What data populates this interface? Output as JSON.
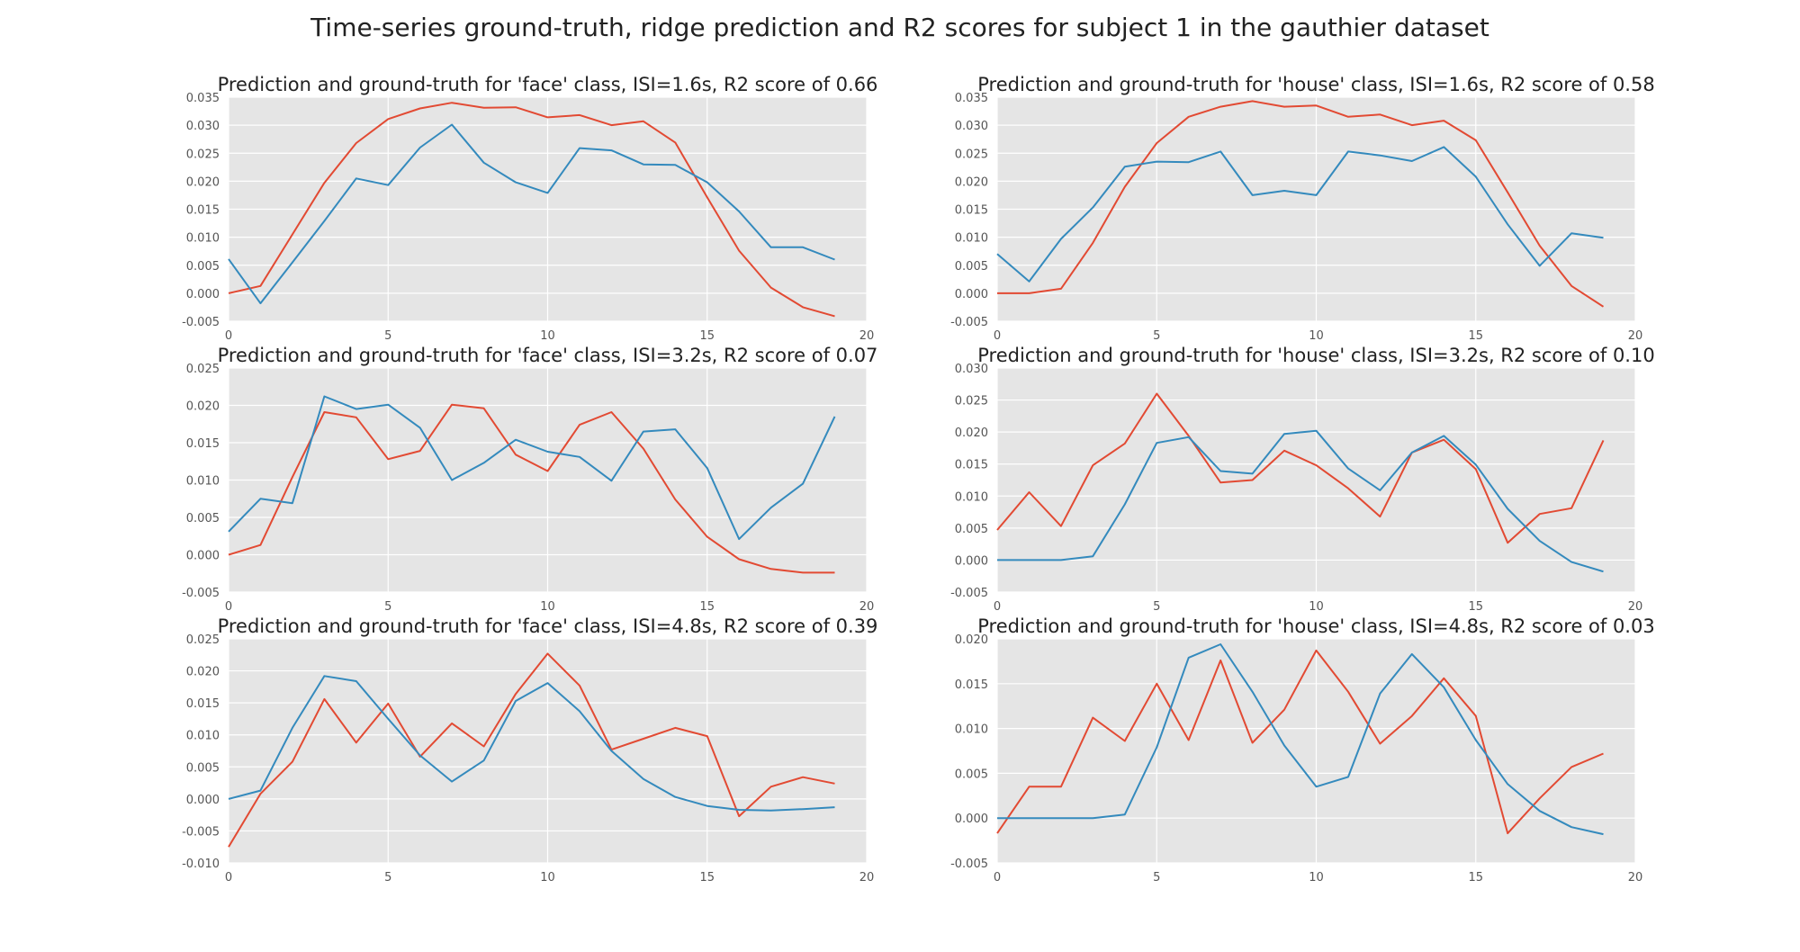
{
  "suptitle": "Time-series ground-truth, ridge prediction and R2 scores for subject 1 in the gauthier dataset",
  "colors": {
    "ground_truth": "#e24a33",
    "prediction": "#348abd",
    "plot_bg": "#e5e5e5",
    "grid": "#ffffff"
  },
  "chart_data": [
    {
      "type": "line",
      "title": "Prediction and ground-truth for 'face' class, ISI=1.6s, R2 score of 0.66",
      "xlim": [
        0,
        20
      ],
      "ylim": [
        -0.005,
        0.035
      ],
      "xticks": [
        "0",
        "5",
        "10",
        "15",
        "20"
      ],
      "yticks": [
        "-0.005",
        "0.000",
        "0.005",
        "0.010",
        "0.015",
        "0.020",
        "0.025",
        "0.030",
        "0.035"
      ],
      "grid": true,
      "x": [
        0,
        1,
        2,
        3,
        4,
        5,
        6,
        7,
        8,
        9,
        10,
        11,
        12,
        13,
        14,
        15,
        16,
        17,
        18,
        19
      ],
      "series": [
        {
          "color": "red",
          "values": [
            0.0,
            0.0013,
            0.0105,
            0.0197,
            0.0268,
            0.0311,
            0.033,
            0.034,
            0.0331,
            0.0332,
            0.0314,
            0.0318,
            0.03,
            0.0307,
            0.0269,
            0.0171,
            0.0076,
            0.001,
            -0.0025,
            -0.0041
          ]
        },
        {
          "color": "blue",
          "values": [
            0.0061,
            -0.0018,
            0.0055,
            0.0129,
            0.0205,
            0.0193,
            0.026,
            0.0301,
            0.0233,
            0.0198,
            0.0179,
            0.0259,
            0.0255,
            0.023,
            0.0229,
            0.0198,
            0.0146,
            0.0082,
            0.0082,
            0.006
          ]
        }
      ]
    },
    {
      "type": "line",
      "title": "Prediction and ground-truth for 'house' class, ISI=1.6s, R2 score of 0.58",
      "xlim": [
        0,
        20
      ],
      "ylim": [
        -0.005,
        0.035
      ],
      "xticks": [
        "0",
        "5",
        "10",
        "15",
        "20"
      ],
      "yticks": [
        "-0.005",
        "0.000",
        "0.005",
        "0.010",
        "0.015",
        "0.020",
        "0.025",
        "0.030",
        "0.035"
      ],
      "grid": true,
      "x": [
        0,
        1,
        2,
        3,
        4,
        5,
        6,
        7,
        8,
        9,
        10,
        11,
        12,
        13,
        14,
        15,
        16,
        17,
        18,
        19
      ],
      "series": [
        {
          "color": "red",
          "values": [
            0.0,
            0.0,
            0.0008,
            0.009,
            0.019,
            0.0268,
            0.0315,
            0.0333,
            0.0343,
            0.0333,
            0.0335,
            0.0315,
            0.0319,
            0.03,
            0.0308,
            0.0273,
            0.018,
            0.0085,
            0.0013,
            -0.0024
          ]
        },
        {
          "color": "blue",
          "values": [
            0.007,
            0.0021,
            0.0097,
            0.0153,
            0.0226,
            0.0235,
            0.0234,
            0.0253,
            0.0175,
            0.0183,
            0.0175,
            0.0253,
            0.0246,
            0.0236,
            0.0261,
            0.0208,
            0.0123,
            0.0049,
            0.0107,
            0.0099
          ]
        }
      ]
    },
    {
      "type": "line",
      "title": "Prediction and ground-truth for 'face' class, ISI=3.2s, R2 score of 0.07",
      "xlim": [
        0,
        20
      ],
      "ylim": [
        -0.005,
        0.025
      ],
      "xticks": [
        "0",
        "5",
        "10",
        "15",
        "20"
      ],
      "yticks": [
        "-0.005",
        "0.000",
        "0.005",
        "0.010",
        "0.015",
        "0.020",
        "0.025"
      ],
      "grid": true,
      "x": [
        0,
        1,
        2,
        3,
        4,
        5,
        6,
        7,
        8,
        9,
        10,
        11,
        12,
        13,
        14,
        15,
        16,
        17,
        18,
        19
      ],
      "series": [
        {
          "color": "red",
          "values": [
            0.0,
            0.0013,
            0.0104,
            0.0191,
            0.0184,
            0.0128,
            0.0139,
            0.0201,
            0.0196,
            0.0134,
            0.0112,
            0.0174,
            0.0191,
            0.0142,
            0.0074,
            0.0024,
            -0.0006,
            -0.0019,
            -0.0024,
            -0.0024
          ]
        },
        {
          "color": "blue",
          "values": [
            0.0031,
            0.0075,
            0.0069,
            0.0212,
            0.0195,
            0.0201,
            0.017,
            0.01,
            0.0123,
            0.0154,
            0.0138,
            0.0131,
            0.0099,
            0.0165,
            0.0168,
            0.0116,
            0.0021,
            0.0063,
            0.0095,
            0.0185
          ]
        }
      ]
    },
    {
      "type": "line",
      "title": "Prediction and ground-truth for 'house' class, ISI=3.2s, R2 score of 0.10",
      "xlim": [
        0,
        20
      ],
      "ylim": [
        -0.005,
        0.03
      ],
      "xticks": [
        "0",
        "5",
        "10",
        "15",
        "20"
      ],
      "yticks": [
        "-0.005",
        "0.000",
        "0.005",
        "0.010",
        "0.015",
        "0.020",
        "0.025",
        "0.030"
      ],
      "grid": true,
      "x": [
        0,
        1,
        2,
        3,
        4,
        5,
        6,
        7,
        8,
        9,
        10,
        11,
        12,
        13,
        14,
        15,
        16,
        17,
        18,
        19
      ],
      "series": [
        {
          "color": "red",
          "values": [
            0.0047,
            0.0106,
            0.0053,
            0.0148,
            0.0182,
            0.026,
            0.0194,
            0.0121,
            0.0125,
            0.0171,
            0.0148,
            0.0112,
            0.0068,
            0.0168,
            0.0188,
            0.0142,
            0.0027,
            0.0072,
            0.0081,
            0.0187
          ]
        },
        {
          "color": "blue",
          "values": [
            0.0,
            0.0,
            0.0,
            0.0006,
            0.0087,
            0.0183,
            0.0192,
            0.0139,
            0.0135,
            0.0197,
            0.0202,
            0.0143,
            0.0109,
            0.0168,
            0.0194,
            0.0149,
            0.008,
            0.003,
            -0.0003,
            -0.0018
          ]
        }
      ]
    },
    {
      "type": "line",
      "title": "Prediction and ground-truth for 'face' class, ISI=4.8s, R2 score of 0.39",
      "xlim": [
        0,
        20
      ],
      "ylim": [
        -0.01,
        0.025
      ],
      "xticks": [
        "0",
        "5",
        "10",
        "15",
        "20"
      ],
      "yticks": [
        "-0.010",
        "-0.005",
        "0.000",
        "0.005",
        "0.010",
        "0.015",
        "0.020",
        "0.025"
      ],
      "grid": true,
      "x": [
        0,
        1,
        2,
        3,
        4,
        5,
        6,
        7,
        8,
        9,
        10,
        11,
        12,
        13,
        14,
        15,
        16,
        17,
        18,
        19
      ],
      "series": [
        {
          "color": "red",
          "values": [
            -0.0075,
            0.0008,
            0.0058,
            0.0156,
            0.0088,
            0.0149,
            0.0066,
            0.0118,
            0.0082,
            0.0164,
            0.0227,
            0.0177,
            0.0077,
            0.0094,
            0.0111,
            0.0098,
            -0.0027,
            0.0019,
            0.0034,
            0.0024
          ]
        },
        {
          "color": "blue",
          "values": [
            0.0,
            0.0013,
            0.0111,
            0.0192,
            0.0184,
            0.0125,
            0.0068,
            0.0027,
            0.006,
            0.0153,
            0.0181,
            0.0137,
            0.0075,
            0.0031,
            0.0003,
            -0.0011,
            -0.0017,
            -0.0018,
            -0.0016,
            -0.0013
          ]
        }
      ]
    },
    {
      "type": "line",
      "title": "Prediction and ground-truth for 'house' class, ISI=4.8s, R2 score of 0.03",
      "xlim": [
        0,
        20
      ],
      "ylim": [
        -0.005,
        0.02
      ],
      "xticks": [
        "0",
        "5",
        "10",
        "15",
        "20"
      ],
      "yticks": [
        "-0.005",
        "0.000",
        "0.005",
        "0.010",
        "0.015",
        "0.020"
      ],
      "grid": true,
      "x": [
        0,
        1,
        2,
        3,
        4,
        5,
        6,
        7,
        8,
        9,
        10,
        11,
        12,
        13,
        14,
        15,
        16,
        17,
        18,
        19
      ],
      "series": [
        {
          "color": "red",
          "values": [
            -0.0017,
            0.0035,
            0.0035,
            0.0112,
            0.0086,
            0.015,
            0.0087,
            0.0176,
            0.0084,
            0.0121,
            0.0187,
            0.0141,
            0.0083,
            0.0114,
            0.0156,
            0.0114,
            -0.0017,
            0.0022,
            0.0057,
            0.0072
          ]
        },
        {
          "color": "blue",
          "values": [
            0.0,
            0.0,
            0.0,
            0.0,
            0.0004,
            0.0079,
            0.0179,
            0.0194,
            0.0141,
            0.0081,
            0.0035,
            0.0046,
            0.0139,
            0.0183,
            0.0146,
            0.0087,
            0.0038,
            0.0008,
            -0.001,
            -0.0018
          ]
        }
      ]
    }
  ]
}
